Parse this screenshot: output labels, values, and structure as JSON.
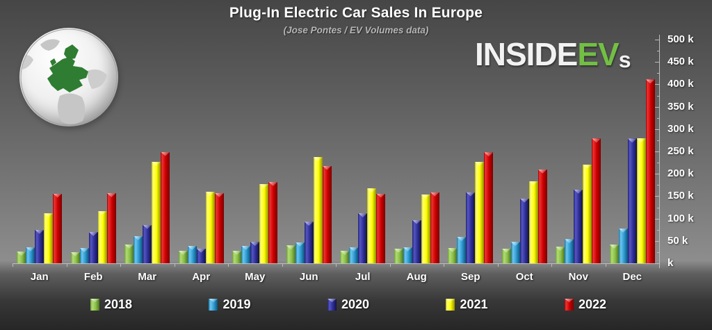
{
  "header": {
    "title": "Plug-In Electric Car Sales In Europe",
    "subtitle": "(Jose Pontes / EV Volumes data)"
  },
  "logo": {
    "part1": "INSIDE",
    "part2": "EV",
    "part3": "s",
    "green_color": "#72bf44",
    "white_color": "#f2f2f2"
  },
  "chart_data": {
    "type": "bar",
    "title": "Plug-In Electric Car Sales In Europe",
    "subtitle": "(Jose Pontes / EV Volumes data)",
    "unit": "thousands of vehicles (k)",
    "categories": [
      "Jan",
      "Feb",
      "Mar",
      "Apr",
      "May",
      "Jun",
      "Jul",
      "Aug",
      "Sep",
      "Oct",
      "Nov",
      "Dec"
    ],
    "series": [
      {
        "name": "2018",
        "color": "#8cc04a",
        "values": [
          26,
          25,
          42,
          28,
          28,
          40,
          28,
          33,
          34,
          33,
          37,
          42
        ]
      },
      {
        "name": "2019",
        "color": "#2e9bd4",
        "values": [
          36,
          34,
          61,
          39,
          39,
          47,
          36,
          36,
          59,
          48,
          54,
          78
        ]
      },
      {
        "name": "2020",
        "color": "#2e2e96",
        "values": [
          75,
          70,
          86,
          33,
          48,
          93,
          112,
          97,
          159,
          145,
          165,
          279
        ]
      },
      {
        "name": "2021",
        "color": "#ffff00",
        "values": [
          112,
          117,
          227,
          160,
          177,
          237,
          167,
          154,
          227,
          184,
          221,
          279
        ]
      },
      {
        "name": "2022",
        "color": "#cc0000",
        "values": [
          156,
          157,
          249,
          157,
          182,
          218,
          156,
          159,
          248,
          210,
          279,
          411
        ]
      }
    ],
    "ylim": [
      0,
      500
    ],
    "y_tick_labels": [
      "500 k",
      "450 k",
      "400 k",
      "350 k",
      "300 k",
      "250 k",
      "200 k",
      "150 k",
      "100 k",
      "50 k",
      "k"
    ],
    "yaxis_side": "right",
    "grid": false,
    "legend_position": "bottom"
  }
}
